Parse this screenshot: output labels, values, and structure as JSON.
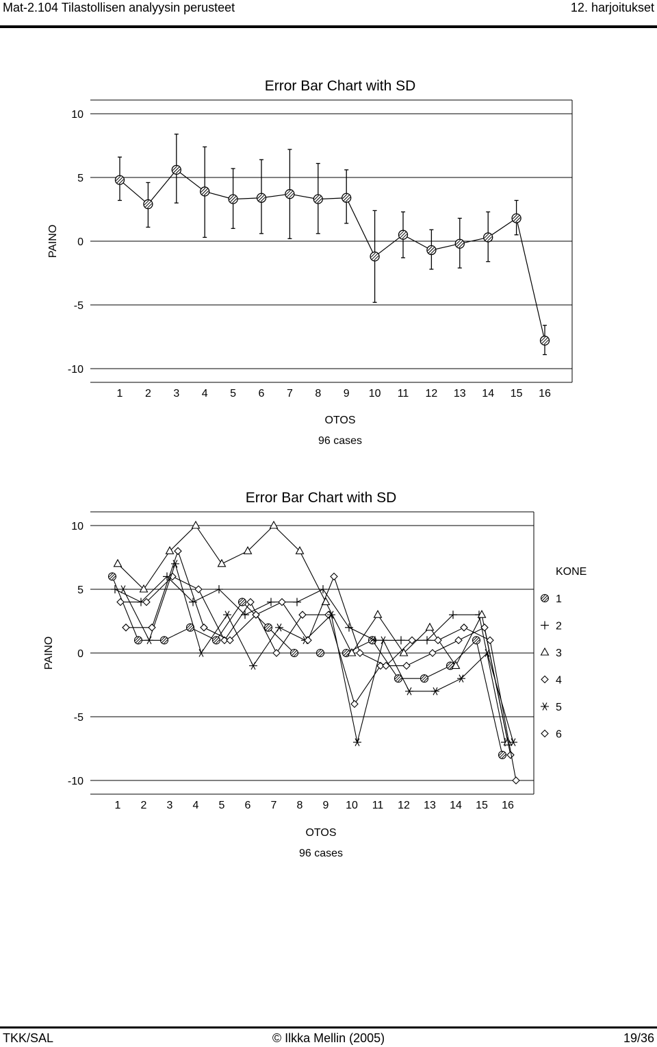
{
  "header": {
    "left": "Mat-2.104 Tilastollisen analyysin perusteet",
    "right": "12. harjoitukset"
  },
  "footer": {
    "left": "TKK/SAL",
    "center": "© Ilkka Mellin (2005)",
    "right": "19/36"
  },
  "chart_data": [
    {
      "type": "line",
      "title": "Error Bar Chart with SD",
      "xlabel": "OTOS",
      "ylabel": "PAINO",
      "note": "96 cases",
      "x": [
        1,
        2,
        3,
        4,
        5,
        6,
        7,
        8,
        9,
        10,
        11,
        12,
        13,
        14,
        15,
        16
      ],
      "xticks": [
        "1",
        "2",
        "3",
        "4",
        "5",
        "6",
        "7",
        "8",
        "9",
        "10",
        "11",
        "12",
        "13",
        "14",
        "15",
        "16"
      ],
      "yticks": [
        "10",
        "5",
        "0",
        "-5",
        "-10"
      ],
      "ylim": [
        -10,
        10
      ],
      "grid": "horizontal",
      "mean": [
        4.8,
        2.9,
        5.6,
        3.9,
        3.3,
        3.4,
        3.7,
        3.3,
        3.4,
        -1.2,
        0.5,
        -0.7,
        -0.2,
        0.3,
        1.8,
        -7.8
      ],
      "lower": [
        3.2,
        1.1,
        3.0,
        0.3,
        1.0,
        0.6,
        0.2,
        0.6,
        1.4,
        -4.8,
        -1.3,
        -2.2,
        -2.1,
        -1.6,
        0.5,
        -8.9
      ],
      "upper": [
        6.6,
        4.6,
        8.4,
        7.4,
        5.7,
        6.4,
        7.2,
        6.1,
        5.6,
        2.4,
        2.3,
        0.9,
        1.8,
        2.3,
        3.2,
        -6.6
      ]
    },
    {
      "type": "line",
      "title": "Error Bar Chart with SD",
      "xlabel": "OTOS",
      "ylabel": "PAINO",
      "note": "96 cases",
      "x": [
        1,
        2,
        3,
        4,
        5,
        6,
        7,
        8,
        9,
        10,
        11,
        12,
        13,
        14,
        15,
        16
      ],
      "xticks": [
        "1",
        "2",
        "3",
        "4",
        "5",
        "6",
        "7",
        "8",
        "9",
        "10",
        "11",
        "12",
        "13",
        "14",
        "15",
        "16"
      ],
      "yticks": [
        "10",
        "5",
        "0",
        "-5",
        "-10"
      ],
      "ylim": [
        -10,
        10
      ],
      "grid": "horizontal",
      "legend_title": "KONE",
      "legend_position": "right",
      "series": [
        {
          "name": "1",
          "marker": "circle-hatched",
          "values": [
            6,
            1,
            1,
            2,
            1,
            4,
            2,
            0,
            0,
            0,
            1,
            -2,
            -2,
            -1,
            1,
            -8
          ]
        },
        {
          "name": "2",
          "marker": "plus",
          "values": [
            5,
            4,
            6,
            4,
            5,
            3,
            4,
            4,
            5,
            2,
            1,
            1,
            1,
            3,
            3,
            -7
          ]
        },
        {
          "name": "3",
          "marker": "triangle",
          "values": [
            7,
            5,
            8,
            10,
            7,
            8,
            10,
            8,
            4,
            0,
            3,
            0,
            2,
            -1,
            3,
            -7
          ]
        },
        {
          "name": "4",
          "marker": "diamond",
          "values": [
            4,
            4,
            6,
            5,
            1,
            4,
            0,
            3,
            3,
            -4,
            -1,
            -1,
            0,
            1,
            2,
            -8
          ]
        },
        {
          "name": "5",
          "marker": "asterisk",
          "values": [
            5,
            1,
            7,
            0,
            3,
            -1,
            2,
            1,
            3,
            -7,
            1,
            -3,
            -3,
            -2,
            0,
            -7
          ]
        },
        {
          "name": "6",
          "marker": "diamond",
          "values": [
            2,
            2,
            8,
            2,
            1,
            3,
            4,
            1,
            6,
            0,
            -1,
            1,
            1,
            2,
            1,
            -10
          ]
        }
      ]
    }
  ]
}
